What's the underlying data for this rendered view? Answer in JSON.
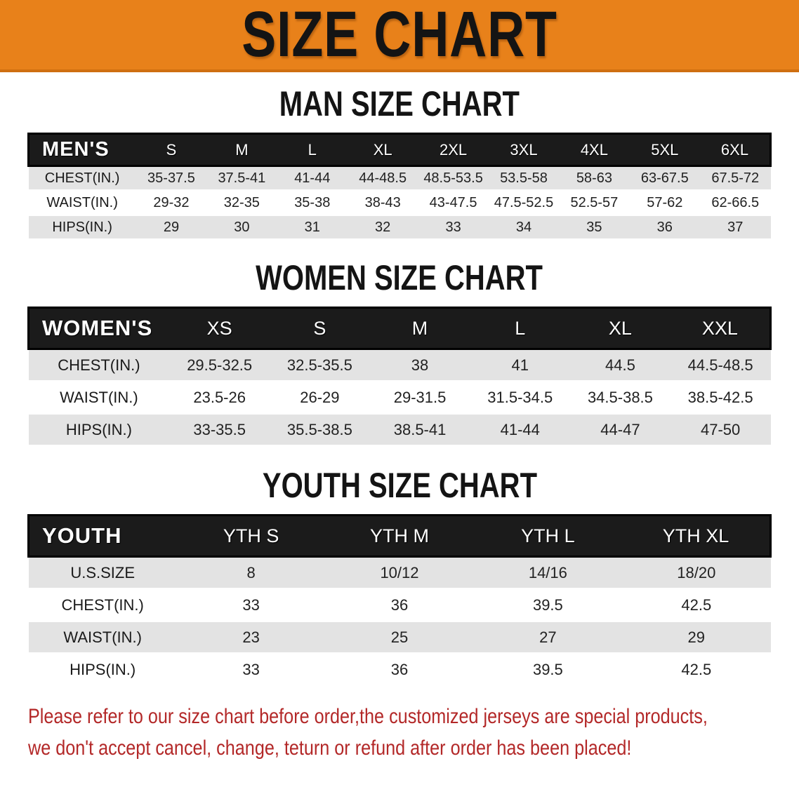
{
  "banner": {
    "title": "SIZE CHART",
    "bg_color": "#E8811A",
    "text_color": "#141414"
  },
  "sections": [
    {
      "heading": "MAN SIZE CHART",
      "table": {
        "corner": "MEN'S",
        "columns": [
          "S",
          "M",
          "L",
          "XL",
          "2XL",
          "3XL",
          "4XL",
          "5XL",
          "6XL"
        ],
        "rows": [
          {
            "label": "CHEST(IN.)",
            "values": [
              "35-37.5",
              "37.5-41",
              "41-44",
              "44-48.5",
              "48.5-53.5",
              "53.5-58",
              "58-63",
              "63-67.5",
              "67.5-72"
            ]
          },
          {
            "label": "WAIST(IN.)",
            "values": [
              "29-32",
              "32-35",
              "35-38",
              "38-43",
              "43-47.5",
              "47.5-52.5",
              "52.5-57",
              "57-62",
              "62-66.5"
            ]
          },
          {
            "label": "HIPS(IN.)",
            "values": [
              "29",
              "30",
              "31",
              "32",
              "33",
              "34",
              "35",
              "36",
              "37"
            ]
          }
        ]
      }
    },
    {
      "heading": "WOMEN SIZE CHART",
      "table": {
        "corner": "WOMEN'S",
        "columns": [
          "XS",
          "S",
          "M",
          "L",
          "XL",
          "XXL"
        ],
        "rows": [
          {
            "label": "CHEST(IN.)",
            "values": [
              "29.5-32.5",
              "32.5-35.5",
              "38",
              "41",
              "44.5",
              "44.5-48.5"
            ]
          },
          {
            "label": "WAIST(IN.)",
            "values": [
              "23.5-26",
              "26-29",
              "29-31.5",
              "31.5-34.5",
              "34.5-38.5",
              "38.5-42.5"
            ]
          },
          {
            "label": "HIPS(IN.)",
            "values": [
              "33-35.5",
              "35.5-38.5",
              "38.5-41",
              "41-44",
              "44-47",
              "47-50"
            ]
          }
        ]
      }
    },
    {
      "heading": "YOUTH SIZE CHART",
      "table": {
        "corner": "YOUTH",
        "columns": [
          "YTH S",
          "YTH M",
          "YTH L",
          "YTH XL"
        ],
        "rows": [
          {
            "label": "U.S.SIZE",
            "values": [
              "8",
              "10/12",
              "14/16",
              "18/20"
            ]
          },
          {
            "label": "CHEST(IN.)",
            "values": [
              "33",
              "36",
              "39.5",
              "42.5"
            ]
          },
          {
            "label": "WAIST(IN.)",
            "values": [
              "23",
              "25",
              "27",
              "29"
            ]
          },
          {
            "label": "HIPS(IN.)",
            "values": [
              "33",
              "36",
              "39.5",
              "42.5"
            ]
          }
        ]
      }
    }
  ],
  "disclaimer": {
    "line1": "Please refer to our size chart before order,the customized jerseys are special products,",
    "line2": "we don't accept cancel, change, teturn or refund after order has been placed!",
    "color": "#B32828"
  }
}
